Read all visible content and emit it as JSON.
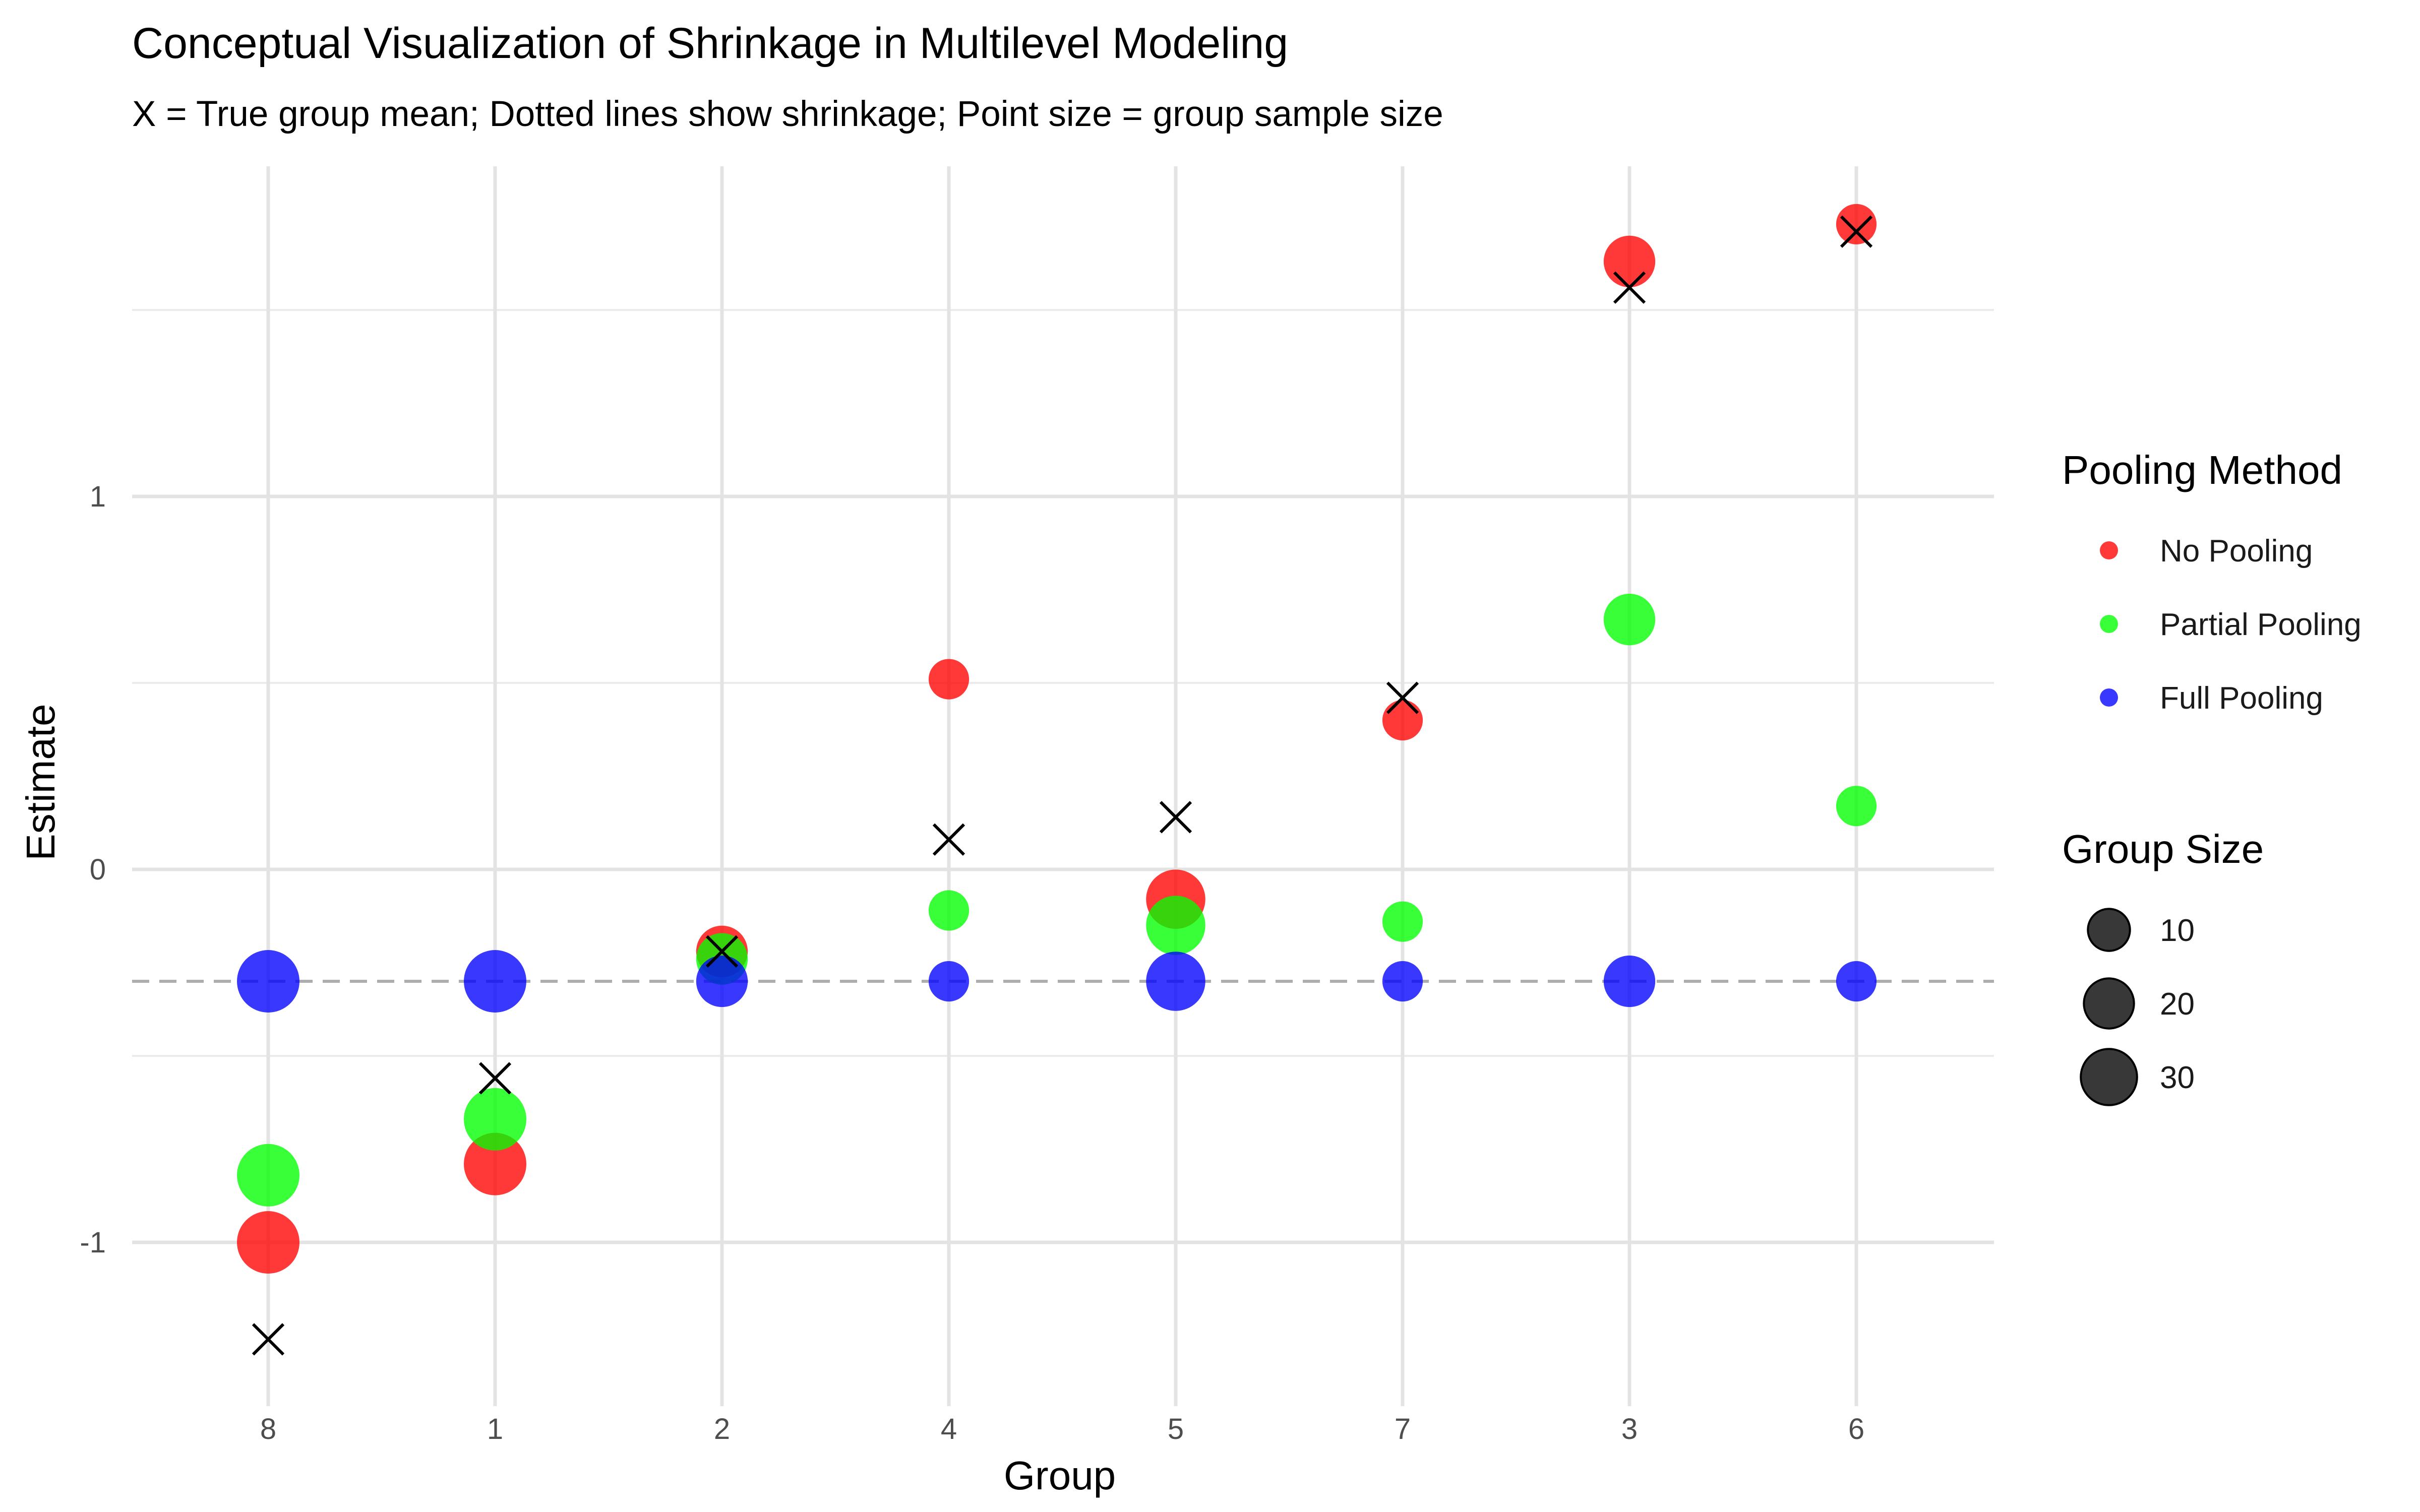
{
  "chart_data": {
    "type": "scatter",
    "title": "Conceptual Visualization of Shrinkage in Multilevel Modeling",
    "subtitle": "X = True group mean; Dotted lines show shrinkage; Point size = group sample size",
    "xlabel": "Group",
    "ylabel": "Estimate",
    "categories": [
      "8",
      "1",
      "2",
      "4",
      "5",
      "7",
      "3",
      "6"
    ],
    "y_ticks": [
      -1,
      0,
      1
    ],
    "y_tick_labels": [
      "-1",
      "0",
      "1"
    ],
    "ylim": [
      -1.42,
      1.82
    ],
    "grand_mean": -0.3,
    "grid": true,
    "legend_placement": "right",
    "colors": {
      "No Pooling": "#ff0000",
      "Partial Pooling": "#00ff00",
      "Full Pooling": "#0000ff"
    },
    "series": [
      {
        "name": "No Pooling",
        "color": "#ff0000",
        "values": [
          -1.0,
          -0.79,
          -0.22,
          0.51,
          -0.08,
          0.4,
          1.63,
          1.73
        ]
      },
      {
        "name": "Partial Pooling",
        "color": "#00ff00",
        "values": [
          -0.82,
          -0.67,
          -0.24,
          -0.11,
          -0.15,
          -0.14,
          0.67,
          0.17
        ]
      },
      {
        "name": "Full Pooling",
        "color": "#0000ff",
        "values": [
          -0.3,
          -0.3,
          -0.3,
          -0.3,
          -0.3,
          -0.3,
          -0.3,
          -0.3
        ]
      }
    ],
    "true_means": [
      -1.26,
      -0.56,
      -0.22,
      0.08,
      0.14,
      0.46,
      1.56,
      1.71
    ],
    "group_sizes": [
      30,
      30,
      15,
      5,
      25,
      5,
      15,
      5
    ],
    "legends": {
      "color": {
        "title": "Pooling Method",
        "items": [
          "No Pooling",
          "Partial Pooling",
          "Full Pooling"
        ]
      },
      "size": {
        "title": "Group Size",
        "items": [
          10,
          20,
          30
        ]
      }
    }
  }
}
